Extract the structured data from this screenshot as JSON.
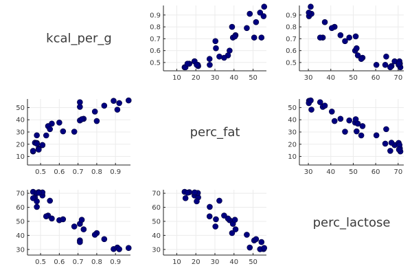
{
  "colors": {
    "marker": "#000080",
    "marker_stroke": "#000033",
    "grid": "#ebebeb",
    "axis": "#222222",
    "text": "#3a3a3a"
  },
  "variables": [
    "kcal_per_g",
    "perc_fat",
    "perc_lactose"
  ],
  "chart_data": {
    "type": "scatter",
    "layout": "pair-plot 3x3",
    "variables": {
      "kcal_per_g": {
        "values": [
          0.49,
          0.51,
          0.46,
          0.48,
          0.6,
          0.47,
          0.56,
          0.89,
          0.91,
          0.92,
          0.8,
          0.46,
          0.71,
          0.71,
          0.73,
          0.68,
          0.72,
          0.97,
          0.79,
          0.84,
          0.48,
          0.62,
          0.51,
          0.54,
          0.49,
          0.53,
          0.48,
          0.55,
          0.71
        ],
        "ticks": [
          0.5,
          0.6,
          0.7,
          0.8,
          0.9
        ],
        "range": [
          0.43,
          0.98
        ]
      },
      "perc_fat": {
        "values": [
          16.6,
          19.27,
          14.11,
          27.28,
          37.69,
          21.22,
          36.84,
          55.51,
          48.27,
          53.68,
          38.98,
          14.57,
          50.58,
          39.44,
          40.8,
          30.26,
          40.48,
          55.82,
          46.71,
          51.56,
          21.04,
          30.53,
          19.36,
          34.82,
          15.6,
          27.19,
          20.46,
          32.32,
          54.4
        ],
        "ticks": [
          10,
          20,
          30,
          40,
          50
        ],
        "range": [
          3.0,
          57.0
        ]
      },
      "perc_lactose": {
        "values": [
          70.77,
          68.43,
          70.99,
          60.31,
          50.83,
          67.03,
          52.03,
          30.29,
          31.36,
          30.21,
          41.67,
          66.5,
          36.43,
          48.23,
          44.31,
          46.33,
          51.1,
          31.04,
          40.46,
          37.33,
          70.22,
          51.49,
          70.59,
          54.13,
          70.38,
          53.56,
          64.26,
          64.68,
          35.25
        ],
        "ticks": [
          30,
          40,
          50,
          60,
          70
        ],
        "range": [
          26.0,
          72.5
        ]
      }
    }
  }
}
